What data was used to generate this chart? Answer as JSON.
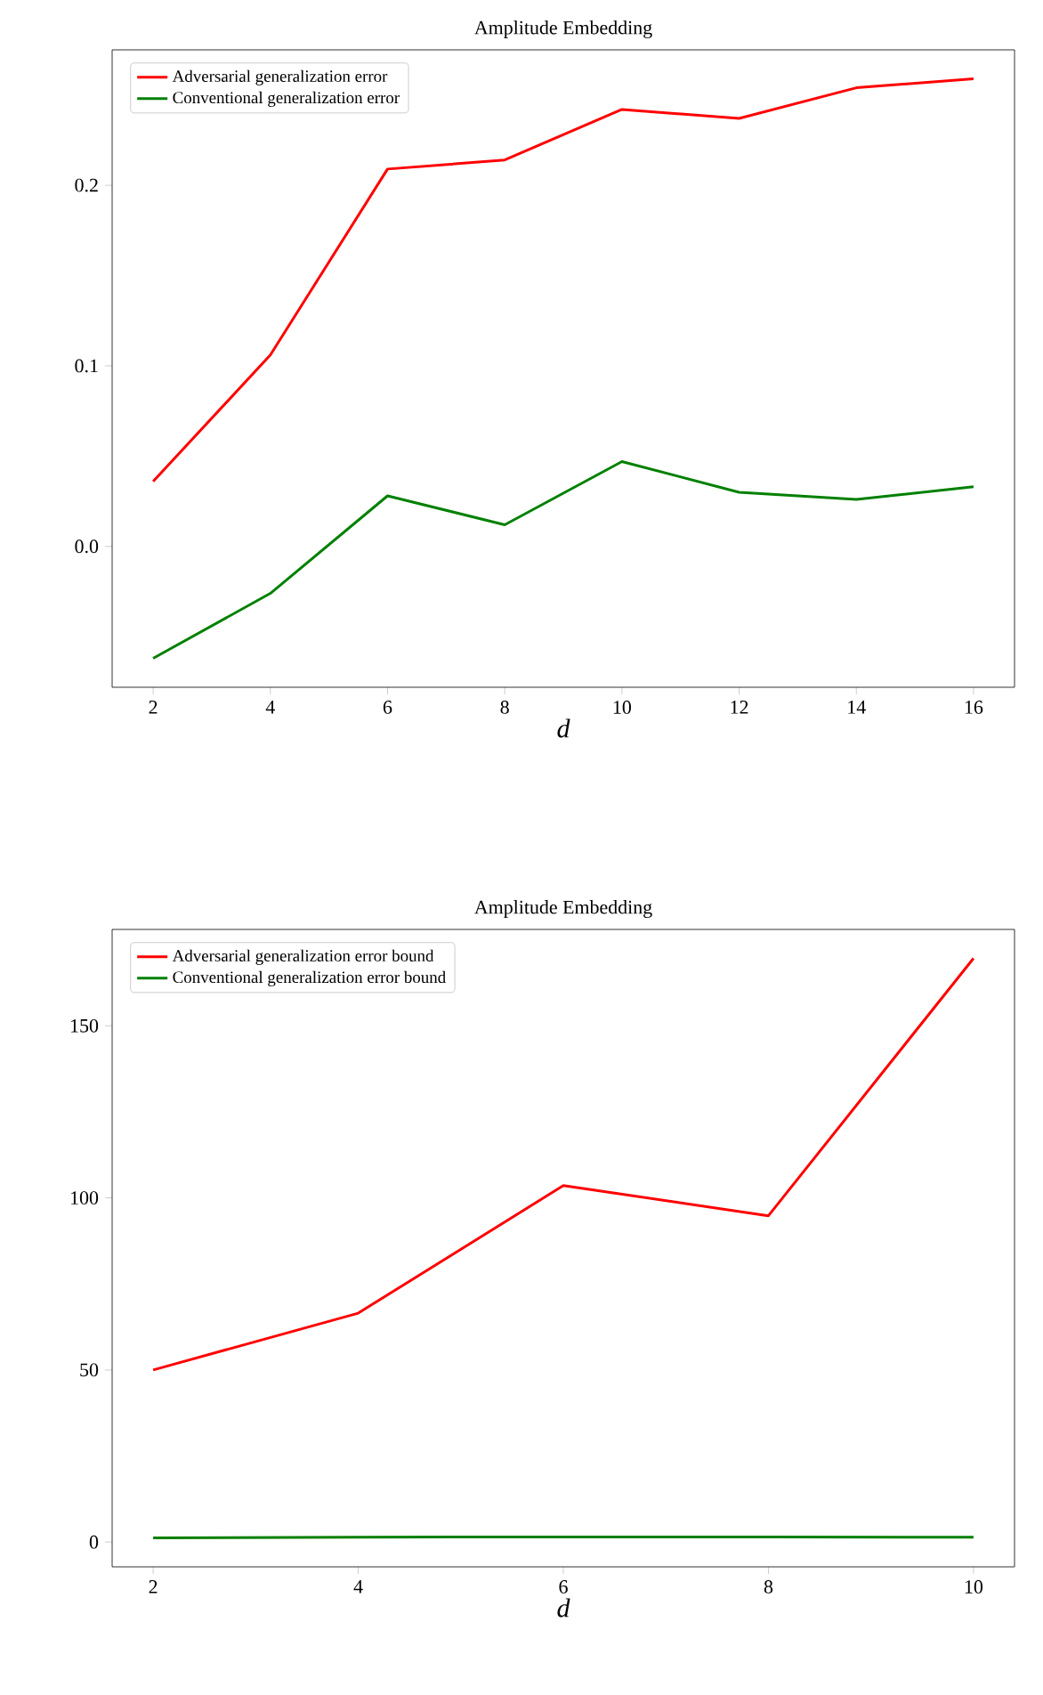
{
  "chart_data": [
    {
      "type": "line",
      "title": "Amplitude Embedding",
      "xlabel": "d",
      "x": [
        2,
        4,
        6,
        8,
        10,
        12,
        14,
        16
      ],
      "series": [
        {
          "name": "Adversarial generalization error",
          "color": "#ff0000",
          "values": [
            0.036,
            0.106,
            0.209,
            0.214,
            0.242,
            0.237,
            0.254,
            0.259
          ]
        },
        {
          "name": "Conventional generalization error",
          "color": "#008000",
          "values": [
            -0.062,
            -0.026,
            0.028,
            0.012,
            0.047,
            0.03,
            0.026,
            0.033
          ]
        }
      ],
      "xlim": [
        1.3,
        16.7
      ],
      "ylim": [
        -0.078,
        0.275
      ],
      "xticks": [
        2,
        4,
        6,
        8,
        10,
        12,
        14,
        16
      ],
      "yticks": [
        {
          "value": 0,
          "label": "0.0"
        },
        0.1,
        0.2
      ],
      "legend": "top left",
      "marker": "none",
      "line_style": "solid"
    },
    {
      "type": "line",
      "title": "Amplitude Embedding",
      "xlabel": "d",
      "x": [
        2,
        4,
        6,
        8,
        10
      ],
      "series": [
        {
          "name": "Adversarial generalization error bound",
          "color": "#ff0000",
          "values": [
            50,
            66.5,
            103.6,
            94.8,
            169.6
          ]
        },
        {
          "name": "Conventional generalization error bound",
          "color": "#008000",
          "values": [
            1.2,
            1.4,
            1.5,
            1.5,
            1.4
          ]
        }
      ],
      "xlim": [
        1.6,
        10.4
      ],
      "ylim": [
        -7.2,
        178
      ],
      "xticks": [
        2,
        4,
        6,
        8,
        10
      ],
      "yticks": [
        0,
        50,
        100,
        150
      ],
      "legend": "top left",
      "marker": "none",
      "line_style": "solid"
    }
  ]
}
